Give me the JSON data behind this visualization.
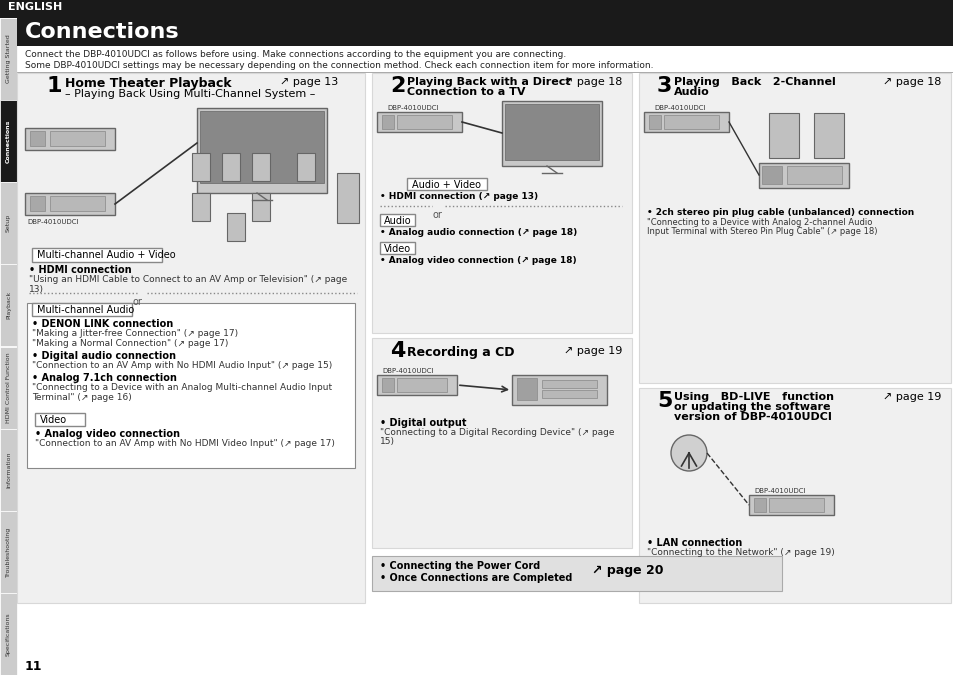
{
  "page_bg": "#ffffff",
  "tab_bg": "#1a1a1a",
  "tab_text": "ENGLISH",
  "tab_text_color": "#ffffff",
  "header_bg": "#1a1a1a",
  "header_text": "Connections",
  "header_text_color": "#ffffff",
  "sidebar_labels": [
    "Getting Started",
    "Connections",
    "Setup",
    "Playback",
    "HDMI Control Function",
    "Information",
    "Troubleshooting",
    "Specifications"
  ],
  "sidebar_highlight": "Connections",
  "sidebar_bg": "#e8e8e8",
  "sidebar_highlight_bg": "#1a1a1a",
  "sidebar_highlight_color": "#ffffff",
  "sidebar_normal_color": "#333333",
  "intro_line1": "Connect the DBP-4010UDCI as follows before using. Make connections according to the equipment you are connecting.",
  "intro_line2": "Some DBP-4010UDCI settings may be necessary depending on the connection method. Check each connection item for more information.",
  "section1_num": "1",
  "section1_title": "Home Theater Playback",
  "section1_page": "↗ page 13",
  "section1_subtitle": "– Playing Back Using Multi-Channel System –",
  "section1_box1_label": "Multi-channel Audio + Video",
  "section1_hdmi": "• HDMI connection",
  "section1_hdmi_desc": "\"Using an HDMI Cable to Connect to an AV Amp or Television\" (↗ page\n13)",
  "section1_box2_label": "Multi-channel Audio",
  "section1_denon": "• DENON LINK connection",
  "section1_denon_desc1": "\"Making a Jitter-free Connection\" (↗ page 17)",
  "section1_denon_desc2": "\"Making a Normal Connection\" (↗ page 17)",
  "section1_digital": "• Digital audio connection",
  "section1_digital_desc": "\"Connection to an AV Amp with No HDMI Audio Input\" (↗ page 15)",
  "section1_analog71": "• Analog 7.1ch connection",
  "section1_analog71_desc": "\"Connecting to a Device with an Analog Multi-channel Audio Input\nTerminal\" (↗ page 16)",
  "section1_box3_label": "Video",
  "section1_video": "• Analog video connection",
  "section1_video_desc": "\"Connection to an AV Amp with No HDMI Video Input\" (↗ page 17)",
  "section2_num": "2",
  "section2_title": "Playing Back with a Direct\nConnection to a TV",
  "section2_page": "↗ page 18",
  "section2_av_label": "Audio + Video",
  "section2_hdmi": "• HDMI connection (↗ page 13)",
  "section2_audio_label": "Audio",
  "section2_audio": "• Analog audio connection (↗ page 18)",
  "section2_video_label": "Video",
  "section2_video": "• Analog video connection (↗ page 18)",
  "section3_num": "3",
  "section3_title": "Playing   Back   2-Channel\nAudio",
  "section3_page": "↗ page 18",
  "section3_stereo": "• 2ch stereo pin plug cable (unbalanced) connection",
  "section3_stereo_desc": "\"Connecting to a Device with Analog 2-channel Audio\nInput Terminal with Stereo Pin Plug Cable\" (↗ page 18)",
  "section4_num": "4",
  "section4_title": "Recording a CD",
  "section4_page": "↗ page 19",
  "section4_digital": "• Digital output",
  "section4_digital_desc": "\"Connecting to a Digital Recording Device\" (↗ page\n15)",
  "section5_num": "5",
  "section5_title": "Using   BD-LIVE   function\nor updating the software\nversion of DBP-4010UDCI",
  "section5_page": "↗ page 19",
  "section5_lan": "• LAN connection",
  "section5_lan_desc": "\"Connecting to the Network\" (↗ page 19)",
  "bottom_line1": "• Connecting the Power Cord",
  "bottom_line2": "• Once Connections are Completed",
  "bottom_page": "↗ page 20",
  "page_num": "11",
  "device_label": "DBP-4010UDCI",
  "light_gray": "#d8d8d8",
  "medium_gray": "#b0b0b0",
  "dark_gray": "#606060",
  "box_fill": "#e8e8e8",
  "section_bg": "#f0f0f0"
}
